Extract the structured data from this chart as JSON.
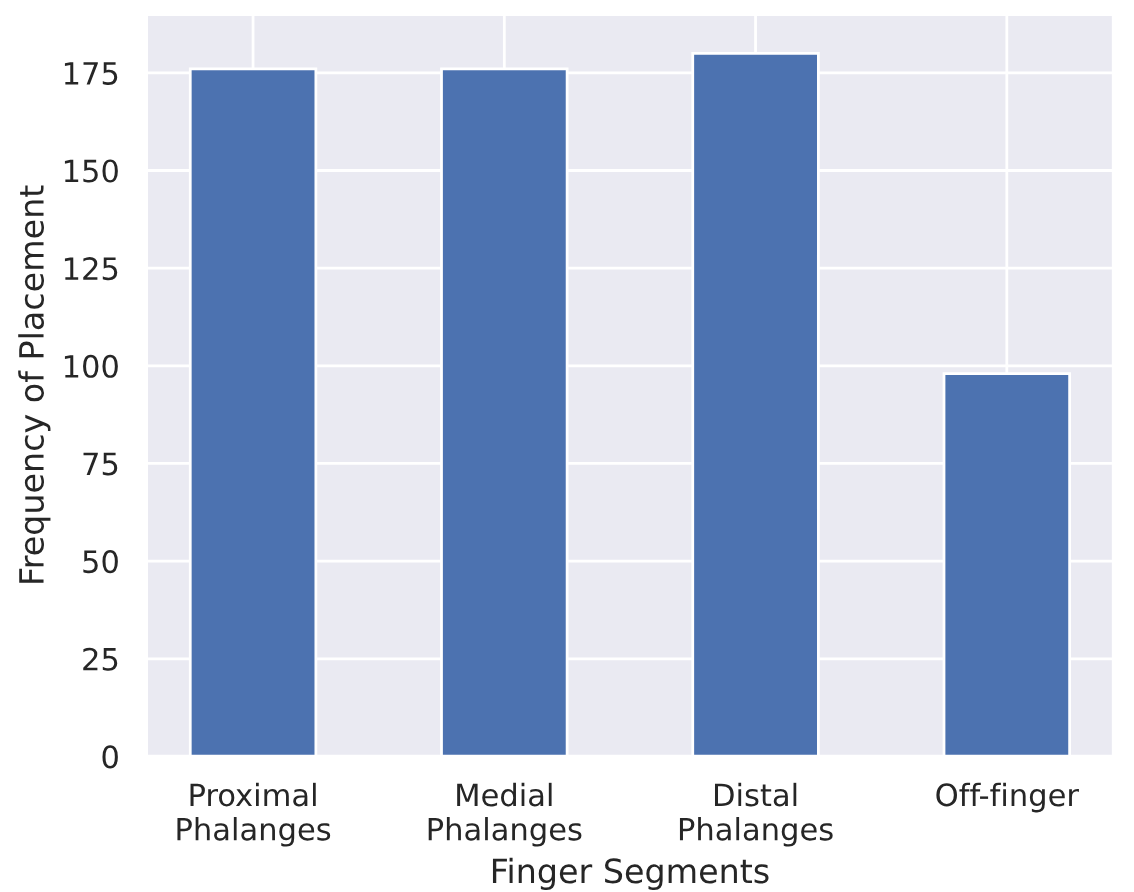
{
  "chart_data": {
    "type": "bar",
    "xlabel": "Finger Segments",
    "ylabel": "Frequency of Placement",
    "categories": [
      "Proximal\nPhalanges",
      "Medial\nPhalanges",
      "Distal\nPhalanges",
      "Off-finger"
    ],
    "values": [
      176,
      176,
      180,
      98
    ],
    "color": "#4c72b0",
    "ylim": [
      0,
      190
    ],
    "yticks": [
      0,
      25,
      50,
      75,
      100,
      125,
      150,
      175
    ],
    "grid": true
  }
}
